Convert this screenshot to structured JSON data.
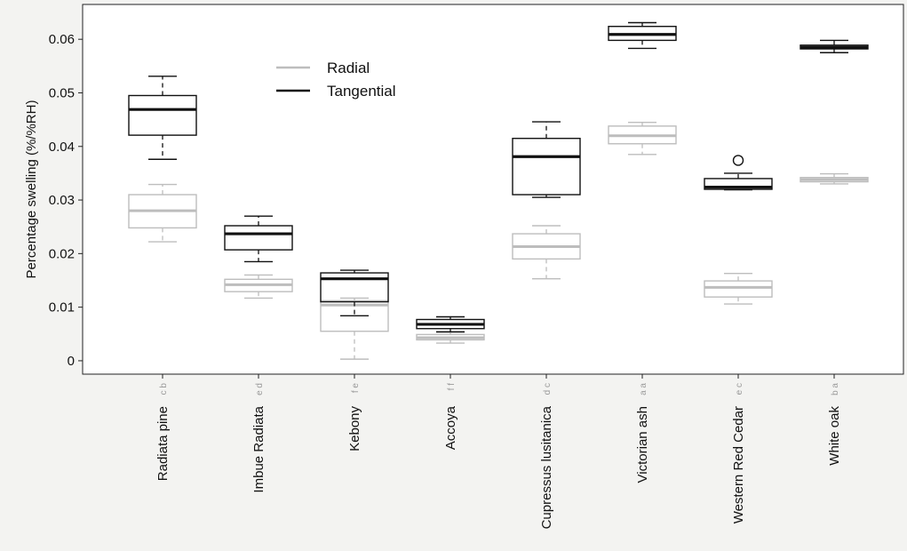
{
  "chart_data": {
    "type": "box",
    "ylabel": "Percentage swelling (%/%RH)",
    "xlabel": "",
    "ylim": [
      -0.0025,
      0.0665
    ],
    "yticks": [
      0,
      0.01,
      0.02,
      0.03,
      0.04,
      0.05,
      0.06
    ],
    "ytick_labels": [
      "0",
      "0.01",
      "0.02",
      "0.03",
      "0.04",
      "0.05",
      "0.06"
    ],
    "categories": [
      "Radiata pine",
      "Imbue Radiata",
      "Kebony",
      "Accoya",
      "Cupressus lusitanica",
      "Victorian ash",
      "Western Red Cedar",
      "White oak"
    ],
    "significance": [
      "c b",
      "e d",
      "f e",
      "f f",
      "d c",
      "a a",
      "e c",
      "b a"
    ],
    "legend_position": "top-center",
    "series": [
      {
        "name": "Radial",
        "color": "#bdbdbd",
        "boxes": [
          {
            "min": 0.0222,
            "q1": 0.0248,
            "median": 0.028,
            "q3": 0.031,
            "max": 0.0329,
            "outliers": []
          },
          {
            "min": 0.0117,
            "q1": 0.0129,
            "median": 0.0142,
            "q3": 0.0152,
            "max": 0.016,
            "outliers": []
          },
          {
            "min": 0.0003,
            "q1": 0.0055,
            "median": 0.0104,
            "q3": 0.0112,
            "max": 0.0117,
            "outliers": []
          },
          {
            "min": 0.0033,
            "q1": 0.0039,
            "median": 0.0043,
            "q3": 0.0049,
            "max": 0.0053,
            "outliers": []
          },
          {
            "min": 0.0153,
            "q1": 0.019,
            "median": 0.0213,
            "q3": 0.0237,
            "max": 0.0252,
            "outliers": []
          },
          {
            "min": 0.0385,
            "q1": 0.0405,
            "median": 0.042,
            "q3": 0.0438,
            "max": 0.0445,
            "outliers": []
          },
          {
            "min": 0.0106,
            "q1": 0.0119,
            "median": 0.0137,
            "q3": 0.0149,
            "max": 0.0163,
            "outliers": []
          },
          {
            "min": 0.033,
            "q1": 0.0334,
            "median": 0.0338,
            "q3": 0.0342,
            "max": 0.0349,
            "outliers": []
          }
        ]
      },
      {
        "name": "Tangential",
        "color": "#111111",
        "boxes": [
          {
            "min": 0.0376,
            "q1": 0.0421,
            "median": 0.0469,
            "q3": 0.0495,
            "max": 0.0531,
            "outliers": []
          },
          {
            "min": 0.0185,
            "q1": 0.0207,
            "median": 0.0237,
            "q3": 0.0252,
            "max": 0.027,
            "outliers": []
          },
          {
            "min": 0.0084,
            "q1": 0.011,
            "median": 0.0153,
            "q3": 0.0164,
            "max": 0.0169,
            "outliers": []
          },
          {
            "min": 0.0054,
            "q1": 0.006,
            "median": 0.0068,
            "q3": 0.0077,
            "max": 0.0082,
            "outliers": []
          },
          {
            "min": 0.0305,
            "q1": 0.031,
            "median": 0.0381,
            "q3": 0.0415,
            "max": 0.0446,
            "outliers": []
          },
          {
            "min": 0.0583,
            "q1": 0.0598,
            "median": 0.0609,
            "q3": 0.0624,
            "max": 0.0631,
            "outliers": []
          },
          {
            "min": 0.0319,
            "q1": 0.032,
            "median": 0.0324,
            "q3": 0.034,
            "max": 0.035,
            "outliers": [
              0.0374
            ]
          },
          {
            "min": 0.0575,
            "q1": 0.0582,
            "median": 0.0585,
            "q3": 0.0589,
            "max": 0.0598,
            "outliers": []
          }
        ]
      }
    ]
  }
}
